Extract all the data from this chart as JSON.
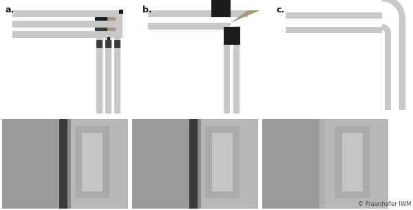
{
  "bg_color": "#ffffff",
  "label_color": "#1a1a1a",
  "frame_color": "#c8c8c8",
  "black_insert": "#1c1c1c",
  "dark_spacer": "#555555",
  "tan_color": "#a8967a",
  "copyright_text": "© Fraunhofer IWM",
  "labels": [
    "a.",
    "b.",
    "c."
  ],
  "bar_thickness": 8,
  "photo_bg": "#b0b0b0",
  "photo_stripe_dark": "#3a3a3a",
  "photo_stripe_mid": "#606060",
  "photo_mid": "#909090",
  "photo_light": "#c0c0c0"
}
